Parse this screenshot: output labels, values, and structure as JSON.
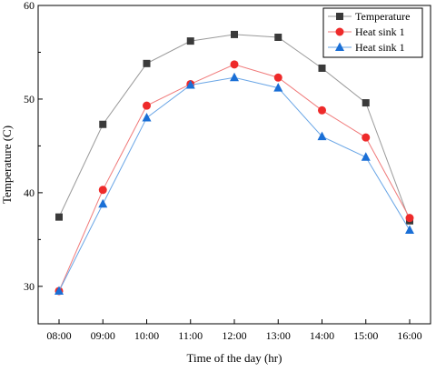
{
  "chart_data": {
    "type": "line",
    "title": "",
    "xlabel": "Time of the day (hr)",
    "ylabel": "Temperature (C)",
    "categories": [
      "08:00",
      "09:00",
      "10:00",
      "11:00",
      "12:00",
      "13:00",
      "14:00",
      "15:00",
      "16:00"
    ],
    "ylim": [
      26,
      60
    ],
    "yticks": [
      30,
      40,
      50,
      60
    ],
    "grid": false,
    "legend_position": "top-right",
    "series": [
      {
        "name": "Temperature",
        "color": "#3a3a3a",
        "line_color": "#9a9a9a",
        "marker": "square",
        "values": [
          37.4,
          47.3,
          53.8,
          56.2,
          56.9,
          56.6,
          53.3,
          49.6,
          37.0
        ]
      },
      {
        "name": "Heat sink 1",
        "color": "#ee2a2a",
        "line_color": "#f07a7a",
        "marker": "circle",
        "values": [
          29.5,
          40.3,
          49.3,
          51.6,
          53.7,
          52.3,
          48.8,
          45.9,
          37.3
        ]
      },
      {
        "name": "Heat sink 1",
        "color": "#1a6fd6",
        "line_color": "#6aa6e6",
        "marker": "triangle",
        "values": [
          29.5,
          38.8,
          48.0,
          51.5,
          52.3,
          51.2,
          46.0,
          43.8,
          36.0
        ]
      }
    ]
  }
}
